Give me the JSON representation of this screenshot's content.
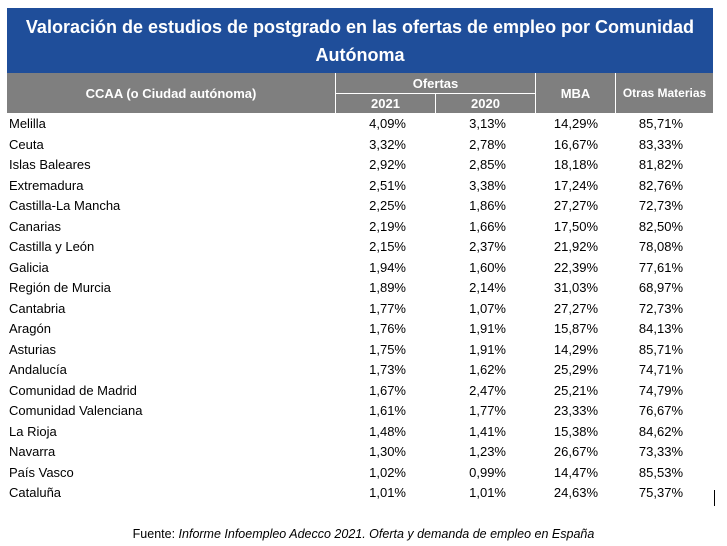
{
  "title": "Valoración de estudios de postgrado en las ofertas de empleo por Comunidad Autónoma",
  "headers": {
    "ccaa": "CCAA (o Ciudad autónoma)",
    "ofertas": "Ofertas",
    "y2021": "2021",
    "y2020": "2020",
    "mba": "MBA",
    "otras": "Otras Materias"
  },
  "rows": [
    {
      "name": "Melilla",
      "y2021": "4,09%",
      "y2020": "3,13%",
      "mba": "14,29%",
      "otras": "85,71%"
    },
    {
      "name": "Ceuta",
      "y2021": "3,32%",
      "y2020": "2,78%",
      "mba": "16,67%",
      "otras": "83,33%"
    },
    {
      "name": "Islas Baleares",
      "y2021": "2,92%",
      "y2020": "2,85%",
      "mba": "18,18%",
      "otras": "81,82%"
    },
    {
      "name": "Extremadura",
      "y2021": "2,51%",
      "y2020": "3,38%",
      "mba": "17,24%",
      "otras": "82,76%"
    },
    {
      "name": "Castilla-La Mancha",
      "y2021": "2,25%",
      "y2020": "1,86%",
      "mba": "27,27%",
      "otras": "72,73%"
    },
    {
      "name": "Canarias",
      "y2021": "2,19%",
      "y2020": "1,66%",
      "mba": "17,50%",
      "otras": "82,50%"
    },
    {
      "name": "Castilla y León",
      "y2021": "2,15%",
      "y2020": "2,37%",
      "mba": "21,92%",
      "otras": "78,08%"
    },
    {
      "name": "Galicia",
      "y2021": "1,94%",
      "y2020": "1,60%",
      "mba": "22,39%",
      "otras": "77,61%"
    },
    {
      "name": "Región de Murcia",
      "y2021": "1,89%",
      "y2020": "2,14%",
      "mba": "31,03%",
      "otras": "68,97%"
    },
    {
      "name": "Cantabria",
      "y2021": "1,77%",
      "y2020": "1,07%",
      "mba": "27,27%",
      "otras": "72,73%"
    },
    {
      "name": "Aragón",
      "y2021": "1,76%",
      "y2020": "1,91%",
      "mba": "15,87%",
      "otras": "84,13%"
    },
    {
      "name": "Asturias",
      "y2021": "1,75%",
      "y2020": "1,91%",
      "mba": "14,29%",
      "otras": "85,71%"
    },
    {
      "name": "Andalucía",
      "y2021": "1,73%",
      "y2020": "1,62%",
      "mba": "25,29%",
      "otras": "74,71%"
    },
    {
      "name": "Comunidad de Madrid",
      "y2021": "1,67%",
      "y2020": "2,47%",
      "mba": "25,21%",
      "otras": "74,79%"
    },
    {
      "name": "Comunidad Valenciana",
      "y2021": "1,61%",
      "y2020": "1,77%",
      "mba": "23,33%",
      "otras": "76,67%"
    },
    {
      "name": "La Rioja",
      "y2021": "1,48%",
      "y2020": "1,41%",
      "mba": "15,38%",
      "otras": "84,62%"
    },
    {
      "name": "Navarra",
      "y2021": "1,30%",
      "y2020": "1,23%",
      "mba": "26,67%",
      "otras": "73,33%"
    },
    {
      "name": "País Vasco",
      "y2021": "1,02%",
      "y2020": "0,99%",
      "mba": "14,47%",
      "otras": "85,53%"
    },
    {
      "name": "Cataluña",
      "y2021": "1,01%",
      "y2020": "1,01%",
      "mba": "24,63%",
      "otras": "75,37%"
    }
  ],
  "source": {
    "label": "Fuente: ",
    "text": "Informe Infoempleo Adecco 2021. Oferta y demanda de empleo en España"
  },
  "colors": {
    "title_bg": "#1f4e9a",
    "header_bg": "#7f7f7f"
  }
}
